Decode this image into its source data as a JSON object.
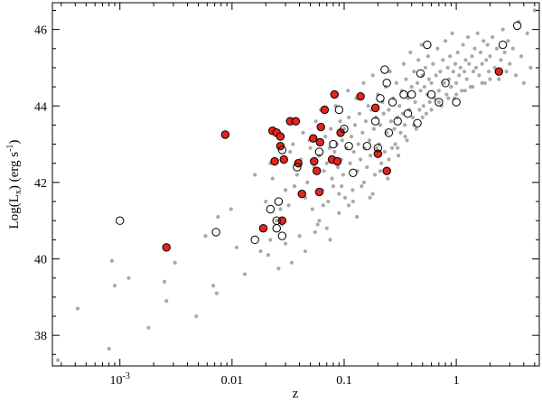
{
  "chart_data": {
    "type": "scatter",
    "xlabel": "z",
    "ylabel": "Log(L<sub>x</sub>) (erg s<sup>-1</sup>)",
    "x_scale": "log",
    "xlim": [
      0.00025,
      5.5
    ],
    "ylim": [
      37.2,
      46.7
    ],
    "x_ticks": [
      {
        "value": 0.001,
        "label": "10",
        "sup": "-3"
      },
      {
        "value": 0.01,
        "label": "0.01",
        "sup": ""
      },
      {
        "value": 0.1,
        "label": "0.1",
        "sup": ""
      },
      {
        "value": 1,
        "label": "1",
        "sup": ""
      }
    ],
    "y_ticks": [
      38,
      40,
      42,
      44,
      46
    ],
    "grid": false,
    "colors": {
      "sample": "#a9a9a9",
      "highlight_fill": "#e8221c",
      "ring": "#000000"
    },
    "series": [
      {
        "style": "gray-dots",
        "points": [
          [
            0.00028,
            37.35
          ],
          [
            0.00042,
            38.7
          ],
          [
            0.0008,
            37.65
          ],
          [
            0.00085,
            39.95
          ],
          [
            0.0009,
            39.3
          ],
          [
            0.0012,
            39.5
          ],
          [
            0.0018,
            38.2
          ],
          [
            0.0025,
            39.4
          ],
          [
            0.0026,
            38.9
          ],
          [
            0.0031,
            39.9
          ],
          [
            0.0048,
            38.5
          ],
          [
            0.0058,
            40.6
          ],
          [
            0.0068,
            39.3
          ],
          [
            0.0073,
            39.1
          ],
          [
            0.0075,
            41.1
          ],
          [
            0.0098,
            41.3
          ],
          [
            0.011,
            40.3
          ],
          [
            0.013,
            39.6
          ],
          [
            0.016,
            42.2
          ],
          [
            0.018,
            40.2
          ],
          [
            0.02,
            41.5
          ],
          [
            0.021,
            40.1
          ],
          [
            0.022,
            42.5
          ],
          [
            0.023,
            42.1
          ],
          [
            0.025,
            41.0
          ],
          [
            0.026,
            39.75
          ],
          [
            0.028,
            40.9
          ],
          [
            0.03,
            41.8
          ],
          [
            0.032,
            41.4
          ],
          [
            0.033,
            42.8
          ],
          [
            0.035,
            43.0
          ],
          [
            0.036,
            41.9
          ],
          [
            0.038,
            42.2
          ],
          [
            0.04,
            40.6
          ],
          [
            0.041,
            42.6
          ],
          [
            0.043,
            43.3
          ],
          [
            0.045,
            41.6
          ],
          [
            0.047,
            42.0
          ],
          [
            0.049,
            43.1
          ],
          [
            0.05,
            42.9
          ],
          [
            0.052,
            41.3
          ],
          [
            0.054,
            42.4
          ],
          [
            0.056,
            43.6
          ],
          [
            0.058,
            40.9
          ],
          [
            0.06,
            42.7
          ],
          [
            0.062,
            43.9
          ],
          [
            0.064,
            41.8
          ],
          [
            0.066,
            42.3
          ],
          [
            0.068,
            43.2
          ],
          [
            0.07,
            42.5
          ],
          [
            0.072,
            41.5
          ],
          [
            0.074,
            42.9
          ],
          [
            0.076,
            43.4
          ],
          [
            0.078,
            42.1
          ],
          [
            0.08,
            41.9
          ],
          [
            0.082,
            42.8
          ],
          [
            0.084,
            44.0
          ],
          [
            0.086,
            43.0
          ],
          [
            0.088,
            42.4
          ],
          [
            0.09,
            41.7
          ],
          [
            0.092,
            43.6
          ],
          [
            0.094,
            42.6
          ],
          [
            0.096,
            43.1
          ],
          [
            0.098,
            42.2
          ],
          [
            0.1,
            43.4
          ],
          [
            0.102,
            41.6
          ],
          [
            0.105,
            42.9
          ],
          [
            0.108,
            44.4
          ],
          [
            0.11,
            43.7
          ],
          [
            0.113,
            42.5
          ],
          [
            0.116,
            43.2
          ],
          [
            0.119,
            41.8
          ],
          [
            0.122,
            42.8
          ],
          [
            0.125,
            43.5
          ],
          [
            0.128,
            44.2
          ],
          [
            0.131,
            42.3
          ],
          [
            0.134,
            43.0
          ],
          [
            0.137,
            43.8
          ],
          [
            0.14,
            42.6
          ],
          [
            0.143,
            41.9
          ],
          [
            0.146,
            43.3
          ],
          [
            0.149,
            44.6
          ],
          [
            0.152,
            42.9
          ],
          [
            0.156,
            43.6
          ],
          [
            0.16,
            42.4
          ],
          [
            0.164,
            44.0
          ],
          [
            0.168,
            43.1
          ],
          [
            0.172,
            42.7
          ],
          [
            0.176,
            43.9
          ],
          [
            0.18,
            44.8
          ],
          [
            0.184,
            43.4
          ],
          [
            0.188,
            42.2
          ],
          [
            0.192,
            43.7
          ],
          [
            0.196,
            42.9
          ],
          [
            0.2,
            44.3
          ],
          [
            0.205,
            43.0
          ],
          [
            0.21,
            43.5
          ],
          [
            0.215,
            42.5
          ],
          [
            0.22,
            44.1
          ],
          [
            0.225,
            43.8
          ],
          [
            0.23,
            42.8
          ],
          [
            0.235,
            44.5
          ],
          [
            0.24,
            43.3
          ],
          [
            0.245,
            42.1
          ],
          [
            0.25,
            43.9
          ],
          [
            0.256,
            44.9
          ],
          [
            0.262,
            43.6
          ],
          [
            0.268,
            42.9
          ],
          [
            0.274,
            44.2
          ],
          [
            0.28,
            43.4
          ],
          [
            0.286,
            43.0
          ],
          [
            0.292,
            44.6
          ],
          [
            0.298,
            43.7
          ],
          [
            0.305,
            42.7
          ],
          [
            0.312,
            44.0
          ],
          [
            0.319,
            43.3
          ],
          [
            0.326,
            44.4
          ],
          [
            0.333,
            43.8
          ],
          [
            0.34,
            45.1
          ],
          [
            0.348,
            43.5
          ],
          [
            0.356,
            44.7
          ],
          [
            0.364,
            43.1
          ],
          [
            0.372,
            44.2
          ],
          [
            0.38,
            43.9
          ],
          [
            0.39,
            45.4
          ],
          [
            0.4,
            44.5
          ],
          [
            0.41,
            43.7
          ],
          [
            0.42,
            44.9
          ],
          [
            0.43,
            44.1
          ],
          [
            0.44,
            43.4
          ],
          [
            0.45,
            44.6
          ],
          [
            0.46,
            45.2
          ],
          [
            0.47,
            43.9
          ],
          [
            0.48,
            44.4
          ],
          [
            0.49,
            45.6
          ],
          [
            0.5,
            44.8
          ],
          [
            0.51,
            44.0
          ],
          [
            0.52,
            44.5
          ],
          [
            0.53,
            45.0
          ],
          [
            0.54,
            43.8
          ],
          [
            0.55,
            44.3
          ],
          [
            0.56,
            45.3
          ],
          [
            0.57,
            44.7
          ],
          [
            0.58,
            44.1
          ],
          [
            0.6,
            44.6
          ],
          [
            0.62,
            45.1
          ],
          [
            0.64,
            44.2
          ],
          [
            0.66,
            44.8
          ],
          [
            0.68,
            45.5
          ],
          [
            0.7,
            44.4
          ],
          [
            0.72,
            44.9
          ],
          [
            0.74,
            44.0
          ],
          [
            0.76,
            45.2
          ],
          [
            0.78,
            44.6
          ],
          [
            0.8,
            45.7
          ],
          [
            0.82,
            44.3
          ],
          [
            0.84,
            45.0
          ],
          [
            0.86,
            44.7
          ],
          [
            0.88,
            45.3
          ],
          [
            0.9,
            44.5
          ],
          [
            0.92,
            45.9
          ],
          [
            0.94,
            44.9
          ],
          [
            0.96,
            44.2
          ],
          [
            0.98,
            45.1
          ],
          [
            1.0,
            44.6
          ],
          [
            1.03,
            45.4
          ],
          [
            1.06,
            44.8
          ],
          [
            1.09,
            45.0
          ],
          [
            1.12,
            44.4
          ],
          [
            1.15,
            45.6
          ],
          [
            1.18,
            44.9
          ],
          [
            1.21,
            45.2
          ],
          [
            1.24,
            44.7
          ],
          [
            1.27,
            45.8
          ],
          [
            1.3,
            45.1
          ],
          [
            1.34,
            44.5
          ],
          [
            1.38,
            45.3
          ],
          [
            1.42,
            44.9
          ],
          [
            1.46,
            45.5
          ],
          [
            1.5,
            45.0
          ],
          [
            1.55,
            45.9
          ],
          [
            1.6,
            44.8
          ],
          [
            1.65,
            45.4
          ],
          [
            1.7,
            45.1
          ],
          [
            1.75,
            45.7
          ],
          [
            1.8,
            44.6
          ],
          [
            1.85,
            45.2
          ],
          [
            1.9,
            45.6
          ],
          [
            1.95,
            44.9
          ],
          [
            2.0,
            45.3
          ],
          [
            2.1,
            45.8
          ],
          [
            2.2,
            45.0
          ],
          [
            2.3,
            45.5
          ],
          [
            2.4,
            44.7
          ],
          [
            2.5,
            45.2
          ],
          [
            2.6,
            46.0
          ],
          [
            2.7,
            45.4
          ],
          [
            2.8,
            44.9
          ],
          [
            2.9,
            45.7
          ],
          [
            3.0,
            45.1
          ],
          [
            3.2,
            45.5
          ],
          [
            3.4,
            44.8
          ],
          [
            3.6,
            46.2
          ],
          [
            3.8,
            45.3
          ],
          [
            4.0,
            44.6
          ],
          [
            4.3,
            45.9
          ],
          [
            4.6,
            45.0
          ],
          [
            5.0,
            46.5
          ],
          [
            0.06,
            41.0
          ],
          [
            0.07,
            40.8
          ],
          [
            0.09,
            41.2
          ],
          [
            0.12,
            41.5
          ],
          [
            0.15,
            42.0
          ],
          [
            0.18,
            41.7
          ],
          [
            0.21,
            42.3
          ],
          [
            0.25,
            42.6
          ],
          [
            0.3,
            42.9
          ],
          [
            0.35,
            43.2
          ],
          [
            0.42,
            43.5
          ],
          [
            0.5,
            43.7
          ],
          [
            0.6,
            43.9
          ],
          [
            0.7,
            44.1
          ],
          [
            0.85,
            44.2
          ],
          [
            1.0,
            44.3
          ],
          [
            1.2,
            44.4
          ],
          [
            1.4,
            44.5
          ],
          [
            1.7,
            44.6
          ],
          [
            2.0,
            44.7
          ],
          [
            0.03,
            40.4
          ],
          [
            0.034,
            39.9
          ],
          [
            0.045,
            40.2
          ],
          [
            0.055,
            40.7
          ],
          [
            0.065,
            41.4
          ],
          [
            0.075,
            40.5
          ],
          [
            0.095,
            41.9
          ],
          [
            0.11,
            41.4
          ],
          [
            0.13,
            41.1
          ],
          [
            0.17,
            41.6
          ],
          [
            0.022,
            40.5
          ],
          [
            0.027,
            41.3
          ]
        ]
      },
      {
        "style": "red-filled-circles",
        "points": [
          [
            0.0026,
            40.3
          ],
          [
            0.0087,
            43.25
          ],
          [
            0.019,
            40.8
          ],
          [
            0.023,
            43.35
          ],
          [
            0.024,
            42.55
          ],
          [
            0.025,
            43.3
          ],
          [
            0.027,
            43.2
          ],
          [
            0.027,
            42.95
          ],
          [
            0.028,
            41.0
          ],
          [
            0.029,
            42.6
          ],
          [
            0.033,
            43.6
          ],
          [
            0.037,
            43.6
          ],
          [
            0.039,
            42.5
          ],
          [
            0.042,
            41.7
          ],
          [
            0.053,
            43.15
          ],
          [
            0.054,
            42.55
          ],
          [
            0.057,
            42.3
          ],
          [
            0.06,
            41.75
          ],
          [
            0.061,
            43.05
          ],
          [
            0.062,
            43.45
          ],
          [
            0.067,
            43.9
          ],
          [
            0.078,
            42.6
          ],
          [
            0.082,
            44.3
          ],
          [
            0.087,
            42.55
          ],
          [
            0.093,
            43.3
          ],
          [
            0.14,
            44.25
          ],
          [
            0.19,
            43.95
          ],
          [
            0.2,
            42.75
          ],
          [
            0.24,
            42.3
          ],
          [
            2.4,
            44.9
          ]
        ]
      },
      {
        "style": "open-circles",
        "points": [
          [
            0.001,
            41.0
          ],
          [
            0.0072,
            40.7
          ],
          [
            0.016,
            40.5
          ],
          [
            0.022,
            41.3
          ],
          [
            0.025,
            41.0
          ],
          [
            0.025,
            40.8
          ],
          [
            0.026,
            41.5
          ],
          [
            0.028,
            42.85
          ],
          [
            0.028,
            40.6
          ],
          [
            0.038,
            42.4
          ],
          [
            0.06,
            42.8
          ],
          [
            0.08,
            43.0
          ],
          [
            0.09,
            43.9
          ],
          [
            0.1,
            43.4
          ],
          [
            0.11,
            42.95
          ],
          [
            0.12,
            42.25
          ],
          [
            0.16,
            42.95
          ],
          [
            0.19,
            43.6
          ],
          [
            0.2,
            42.9
          ],
          [
            0.21,
            44.2
          ],
          [
            0.23,
            44.95
          ],
          [
            0.24,
            44.6
          ],
          [
            0.25,
            43.3
          ],
          [
            0.27,
            44.1
          ],
          [
            0.3,
            43.6
          ],
          [
            0.34,
            44.3
          ],
          [
            0.37,
            43.8
          ],
          [
            0.4,
            44.3
          ],
          [
            0.45,
            43.55
          ],
          [
            0.48,
            44.85
          ],
          [
            0.55,
            45.6
          ],
          [
            0.6,
            44.3
          ],
          [
            0.7,
            44.1
          ],
          [
            0.8,
            44.6
          ],
          [
            1.0,
            44.1
          ],
          [
            2.6,
            45.6
          ],
          [
            3.5,
            46.1
          ]
        ]
      }
    ]
  }
}
